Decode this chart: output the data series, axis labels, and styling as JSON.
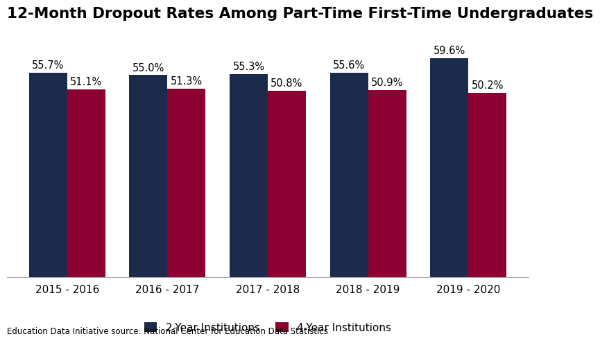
{
  "title": "12-Month Dropout Rates Among Part-Time First-Time Undergraduates",
  "years": [
    "2015 - 2016",
    "2016 - 2017",
    "2017 - 2018",
    "2018 - 2019",
    "2019 - 2020"
  ],
  "two_year": [
    55.7,
    55.0,
    55.3,
    55.6,
    59.6
  ],
  "four_year": [
    51.1,
    51.3,
    50.8,
    50.9,
    50.2
  ],
  "color_2year": "#1c2b4b",
  "color_4year": "#8c0032",
  "legend_2year": "2-Year Institutions",
  "legend_4year": "4-Year Institutions",
  "source": "Education Data Initiative source: National Center for Education Data Statistics",
  "ylim": [
    0,
    68
  ],
  "bar_width": 0.38,
  "title_fontsize": 15.5,
  "label_fontsize": 10.5,
  "tick_fontsize": 11,
  "source_fontsize": 8.5,
  "legend_fontsize": 11
}
